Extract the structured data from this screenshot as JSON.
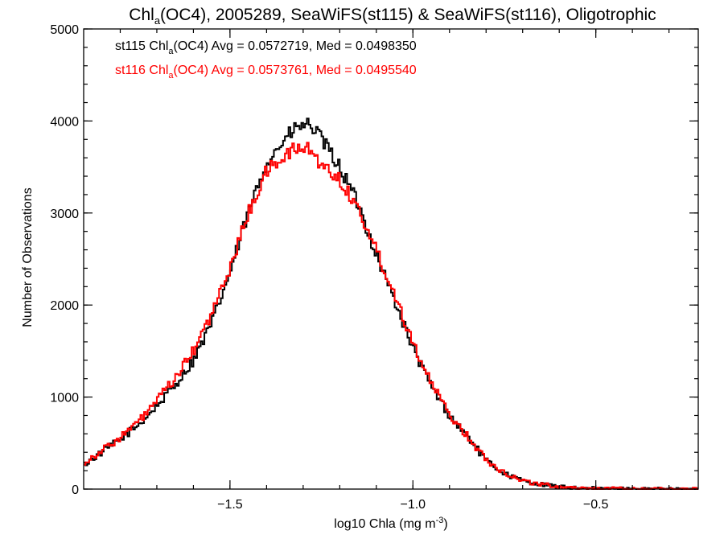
{
  "chart_data": {
    "type": "histogram-step",
    "title_parts": {
      "a": "Chl",
      "sub": "a",
      "b": "(OC4), 2005289, SeaWiFS(st115) & SeaWiFS(st116), Oligotrophic"
    },
    "xlabel": {
      "a": "log10 Chla (mg m",
      "sup": "-3",
      "b": ")"
    },
    "ylabel": "Number of Observations",
    "xlim": [
      -1.9,
      -0.22
    ],
    "ylim": [
      0,
      5000
    ],
    "x_ticks": [
      {
        "value": -1.5,
        "label": "−1.5"
      },
      {
        "value": -1.0,
        "label": "−1.0"
      },
      {
        "value": -0.5,
        "label": "−0.5"
      }
    ],
    "x_minor_step": 0.1,
    "y_ticks": [
      {
        "value": 0,
        "label": "0"
      },
      {
        "value": 1000,
        "label": "1000"
      },
      {
        "value": 2000,
        "label": "2000"
      },
      {
        "value": 3000,
        "label": "3000"
      },
      {
        "value": 4000,
        "label": "4000"
      },
      {
        "value": 5000,
        "label": "5000"
      }
    ],
    "y_minor_step": 200,
    "legend": [
      {
        "color": "#000000",
        "a": "st115 Chl",
        "sub": "a",
        "b": "(OC4) Avg = 0.0572719, Med = 0.0498350"
      },
      {
        "color": "#ff0000",
        "a": "st116 Chl",
        "sub": "a",
        "b": "(OC4) Avg = 0.0573761, Med = 0.0495540"
      }
    ],
    "series": [
      {
        "name": "st115",
        "color": "#000000",
        "points": [
          [
            -1.9,
            260
          ],
          [
            -1.85,
            400
          ],
          [
            -1.8,
            540
          ],
          [
            -1.75,
            700
          ],
          [
            -1.7,
            900
          ],
          [
            -1.65,
            1130
          ],
          [
            -1.6,
            1400
          ],
          [
            -1.55,
            1800
          ],
          [
            -1.5,
            2350
          ],
          [
            -1.45,
            3000
          ],
          [
            -1.4,
            3550
          ],
          [
            -1.35,
            3800
          ],
          [
            -1.32,
            3920
          ],
          [
            -1.3,
            3950
          ],
          [
            -1.28,
            3960
          ],
          [
            -1.25,
            3800
          ],
          [
            -1.2,
            3500
          ],
          [
            -1.15,
            3100
          ],
          [
            -1.1,
            2550
          ],
          [
            -1.05,
            2050
          ],
          [
            -1.0,
            1530
          ],
          [
            -0.95,
            1120
          ],
          [
            -0.9,
            800
          ],
          [
            -0.85,
            570
          ],
          [
            -0.8,
            310
          ],
          [
            -0.75,
            170
          ],
          [
            -0.7,
            90
          ],
          [
            -0.65,
            50
          ],
          [
            -0.6,
            25
          ],
          [
            -0.55,
            12
          ],
          [
            -0.5,
            6
          ],
          [
            -0.4,
            2
          ],
          [
            -0.22,
            0
          ]
        ]
      },
      {
        "name": "st116",
        "color": "#ff0000",
        "points": [
          [
            -1.9,
            280
          ],
          [
            -1.85,
            420
          ],
          [
            -1.8,
            560
          ],
          [
            -1.75,
            730
          ],
          [
            -1.7,
            960
          ],
          [
            -1.65,
            1200
          ],
          [
            -1.6,
            1500
          ],
          [
            -1.55,
            1900
          ],
          [
            -1.5,
            2400
          ],
          [
            -1.45,
            3000
          ],
          [
            -1.4,
            3450
          ],
          [
            -1.35,
            3620
          ],
          [
            -1.32,
            3700
          ],
          [
            -1.3,
            3700
          ],
          [
            -1.28,
            3690
          ],
          [
            -1.25,
            3520
          ],
          [
            -1.2,
            3370
          ],
          [
            -1.15,
            3050
          ],
          [
            -1.1,
            2600
          ],
          [
            -1.05,
            2120
          ],
          [
            -1.0,
            1600
          ],
          [
            -0.95,
            1150
          ],
          [
            -0.9,
            810
          ],
          [
            -0.85,
            570
          ],
          [
            -0.8,
            320
          ],
          [
            -0.75,
            180
          ],
          [
            -0.7,
            90
          ],
          [
            -0.65,
            52
          ],
          [
            -0.6,
            26
          ],
          [
            -0.55,
            13
          ],
          [
            -0.5,
            7
          ],
          [
            -0.4,
            2
          ],
          [
            -0.22,
            0
          ]
        ]
      }
    ]
  }
}
